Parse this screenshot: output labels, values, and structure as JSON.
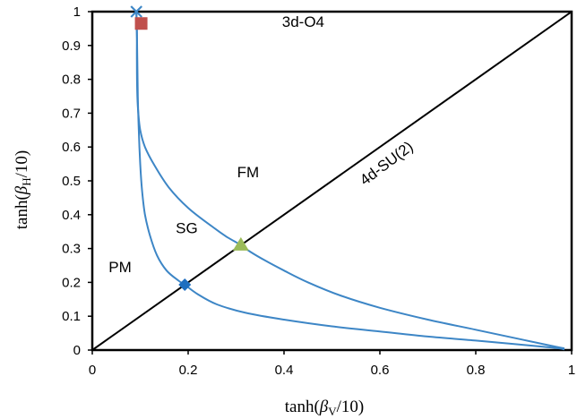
{
  "chart_data": {
    "type": "line",
    "xlabel": {
      "prefix": "tanh(",
      "symbol": "β",
      "subscript": "V",
      "suffix": "/10)"
    },
    "ylabel": {
      "prefix": "tanh(",
      "symbol": "β",
      "subscript": "H",
      "suffix": "/10)"
    },
    "xlim": [
      0,
      1
    ],
    "ylim": [
      0,
      1
    ],
    "x_ticks": [
      "0",
      "0.2",
      "0.4",
      "0.6",
      "0.8",
      "1"
    ],
    "y_ticks": [
      "0",
      "0.1",
      "0.2",
      "0.3",
      "0.4",
      "0.5",
      "0.6",
      "0.7",
      "0.8",
      "0.9",
      "1"
    ],
    "colors": {
      "curve": "#3d86c6",
      "diagonal": "#000000",
      "frame": "#000000"
    },
    "region_labels": [
      {
        "text": "3d-O4",
        "x": 0.44,
        "y": 0.955
      },
      {
        "text": "FM",
        "x": 0.325,
        "y": 0.51
      },
      {
        "text": "SG",
        "x": 0.197,
        "y": 0.345
      },
      {
        "text": "PM",
        "x": 0.058,
        "y": 0.23
      },
      {
        "text": "4d-SU(2)",
        "x": 0.62,
        "y": 0.54,
        "rotate": -37
      }
    ],
    "series": [
      {
        "name": "diagonal",
        "style": "black",
        "x": [
          0,
          1
        ],
        "y": [
          0,
          1
        ]
      },
      {
        "name": "outer-boundary",
        "style": "blue",
        "x": [
          0.092,
          0.093,
          0.094,
          0.095,
          0.097,
          0.1,
          0.104,
          0.11,
          0.12,
          0.135,
          0.155,
          0.18,
          0.193,
          0.22,
          0.26,
          0.32,
          0.4,
          0.5,
          0.6,
          0.7,
          0.8,
          0.88,
          0.94,
          0.975,
          0.985
        ],
        "y": [
          1.0,
          0.95,
          0.85,
          0.75,
          0.65,
          0.55,
          0.47,
          0.4,
          0.34,
          0.28,
          0.235,
          0.205,
          0.193,
          0.165,
          0.135,
          0.11,
          0.09,
          0.07,
          0.055,
          0.04,
          0.028,
          0.018,
          0.01,
          0.005,
          0.002
        ]
      },
      {
        "name": "inner-boundary",
        "style": "blue",
        "x": [
          0.092,
          0.093,
          0.093,
          0.094,
          0.096,
          0.1,
          0.11,
          0.13,
          0.16,
          0.2,
          0.25,
          0.28,
          0.31,
          0.33,
          0.36,
          0.4,
          0.45,
          0.52,
          0.6,
          0.7,
          0.8,
          0.9,
          0.96,
          0.985
        ],
        "y": [
          1.0,
          0.92,
          0.85,
          0.75,
          0.7,
          0.65,
          0.6,
          0.545,
          0.48,
          0.42,
          0.365,
          0.335,
          0.31,
          0.29,
          0.265,
          0.235,
          0.2,
          0.16,
          0.125,
          0.09,
          0.06,
          0.03,
          0.012,
          0.005
        ]
      }
    ],
    "markers": [
      {
        "name": "cross",
        "shape": "x",
        "color": "#3d86c6",
        "x": 0.092,
        "y": 1.0
      },
      {
        "name": "square",
        "shape": "square",
        "color": "#c0504d",
        "x": 0.102,
        "y": 0.965
      },
      {
        "name": "diamond",
        "shape": "diamond",
        "color": "#1f6fc0",
        "x": 0.193,
        "y": 0.193
      },
      {
        "name": "triangle",
        "shape": "triangle",
        "color": "#9bbb59",
        "x": 0.31,
        "y": 0.31
      }
    ]
  }
}
